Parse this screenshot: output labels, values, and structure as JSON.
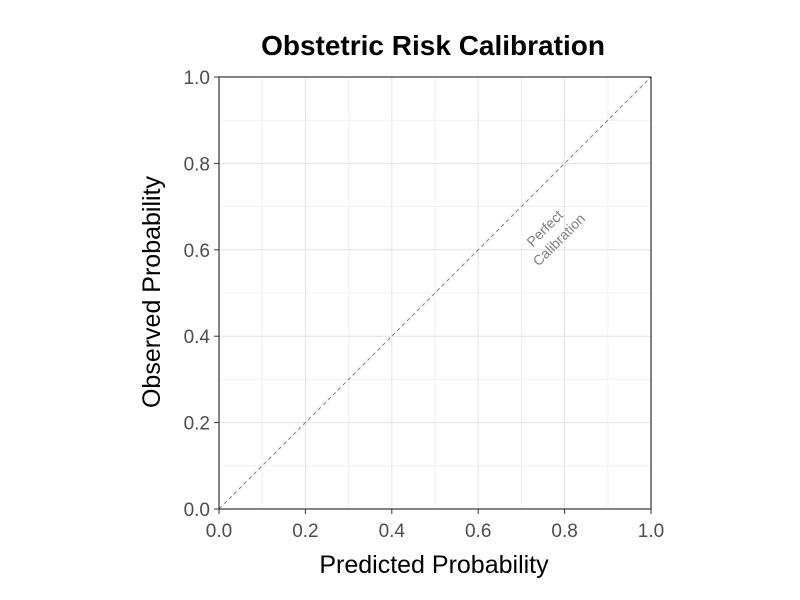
{
  "chart_data": {
    "type": "line",
    "title": "Obstetric Risk Calibration",
    "xlabel": "Predicted Probability",
    "ylabel": "Observed Probability",
    "xlim": [
      0,
      1
    ],
    "ylim": [
      0,
      1
    ],
    "x_ticks": [
      "0.0",
      "0.2",
      "0.4",
      "0.6",
      "0.8",
      "1.0"
    ],
    "y_ticks": [
      "0.0",
      "0.2",
      "0.4",
      "0.6",
      "0.8",
      "1.0"
    ],
    "grid": true,
    "reference_line": {
      "x": [
        0,
        1
      ],
      "y": [
        0,
        1
      ],
      "style": "dashed",
      "color": "#808080"
    },
    "annotation": {
      "lines": [
        "Perfect",
        "Calibration"
      ],
      "x": 0.78,
      "y": 0.63,
      "color": "#808080"
    }
  }
}
